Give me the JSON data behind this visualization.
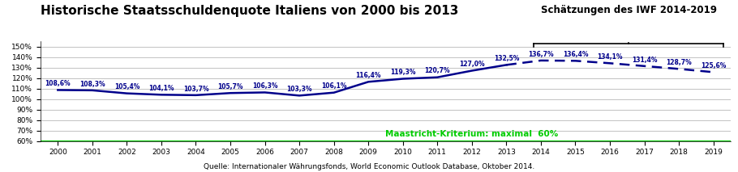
{
  "title": "Historische Staatsschuldenquote Italiens von 2000 bis 2013",
  "annotation_label": "Schätzungen des IWF 2014-2019",
  "source": "Quelle: Internationaler Währungsfonds, World Economic Outlook Database, Oktober 2014.",
  "maastricht_label": "Maastricht-Kriterium: maximal  60%",
  "maastricht_value": 60.0,
  "historical_years": [
    2000,
    2001,
    2002,
    2003,
    2004,
    2005,
    2006,
    2007,
    2008,
    2009,
    2010,
    2011,
    2012,
    2013
  ],
  "historical_values": [
    108.6,
    108.3,
    105.4,
    104.1,
    103.7,
    105.7,
    106.3,
    103.3,
    106.1,
    116.4,
    119.3,
    120.7,
    127.0,
    132.5
  ],
  "historical_labels": [
    "108,6%",
    "108,3%",
    "105,4%",
    "104,1%",
    "103,7%",
    "105,7%",
    "106,3%",
    "103,3%",
    "106,1%",
    "116,4%",
    "119,3%",
    "120,7%",
    "127,0%",
    "132,5%"
  ],
  "estimate_years": [
    2013,
    2014,
    2015,
    2016,
    2017,
    2018,
    2019
  ],
  "estimate_values": [
    132.5,
    136.7,
    136.4,
    134.1,
    131.4,
    128.7,
    125.6
  ],
  "estimate_labels": [
    "",
    "136,7%",
    "136,4%",
    "134,1%",
    "131,4%",
    "128,7%",
    "125,6%"
  ],
  "line_color": "#00008B",
  "dashed_color": "#00008B",
  "maastricht_color": "#00CC00",
  "maastricht_text_color": "#00CC00",
  "bg_color": "#FFFFFF",
  "ylim": [
    60,
    155
  ],
  "yticks": [
    60,
    70,
    80,
    90,
    100,
    110,
    120,
    130,
    140,
    150
  ],
  "ytick_labels": [
    "60%",
    "70%",
    "80%",
    "90%",
    "100%",
    "110%",
    "120%",
    "130%",
    "140%",
    "150%"
  ],
  "title_fontsize": 11,
  "label_fontsize": 5.5,
  "source_fontsize": 6.5,
  "maastricht_fontsize": 7.5,
  "annotation_fontsize": 8.5
}
